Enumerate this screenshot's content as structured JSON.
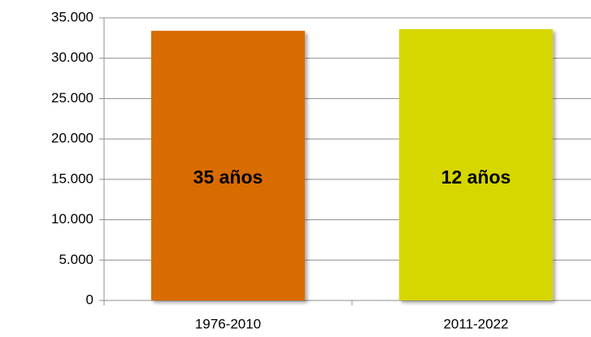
{
  "chart_data": {
    "type": "bar",
    "categories": [
      "1976-2010",
      "2011-2022"
    ],
    "series": [
      {
        "values": [
          33400,
          33600
        ],
        "colors": [
          "#d96c00",
          "#d6d600"
        ]
      }
    ],
    "annotations": [
      "35 años",
      "12 años"
    ],
    "ylim": [
      0,
      35000
    ],
    "yticks": [
      {
        "value": 0,
        "label": "0"
      },
      {
        "value": 5000,
        "label": "5.000"
      },
      {
        "value": 10000,
        "label": "10.000"
      },
      {
        "value": 15000,
        "label": "15.000"
      },
      {
        "value": 20000,
        "label": "20.000"
      },
      {
        "value": 25000,
        "label": "25.000"
      },
      {
        "value": 30000,
        "label": "30.000"
      },
      {
        "value": 35000,
        "label": "35.000"
      }
    ],
    "grid": true
  }
}
